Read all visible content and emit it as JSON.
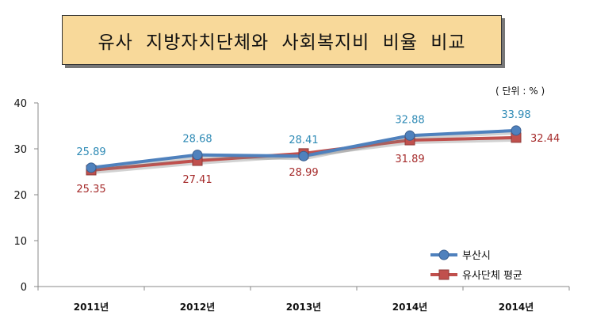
{
  "title": "유사 지방자치단체와 사회복지비 비율 비교",
  "unit": "( 단위 : % )",
  "chart_data": {
    "type": "line",
    "title": "유사 지방자치단체와 사회복지비 비율 비교",
    "categories": [
      "2011년",
      "2012년",
      "2013년",
      "2014년",
      "2014년"
    ],
    "ylim": [
      0,
      40
    ],
    "yticks": [
      "0",
      "10",
      "20",
      "30",
      "40"
    ],
    "grid": false,
    "legend_position": "bottom-right",
    "series": [
      {
        "name": "부산시",
        "values": [
          25.89,
          28.68,
          28.41,
          32.88,
          33.98
        ],
        "labels": [
          "25.89",
          "28.68",
          "28.41",
          "32.88",
          "33.98"
        ],
        "color": "#4f81bd",
        "label_color": "#2e8ab5",
        "marker": "circle"
      },
      {
        "name": "유사단체 평균",
        "values": [
          25.35,
          27.41,
          28.99,
          31.89,
          32.44
        ],
        "labels": [
          "25.35",
          "27.41",
          "28.99",
          "31.89",
          "32.44"
        ],
        "color": "#c0504d",
        "label_color": "#a52a2a",
        "marker": "square"
      }
    ]
  }
}
